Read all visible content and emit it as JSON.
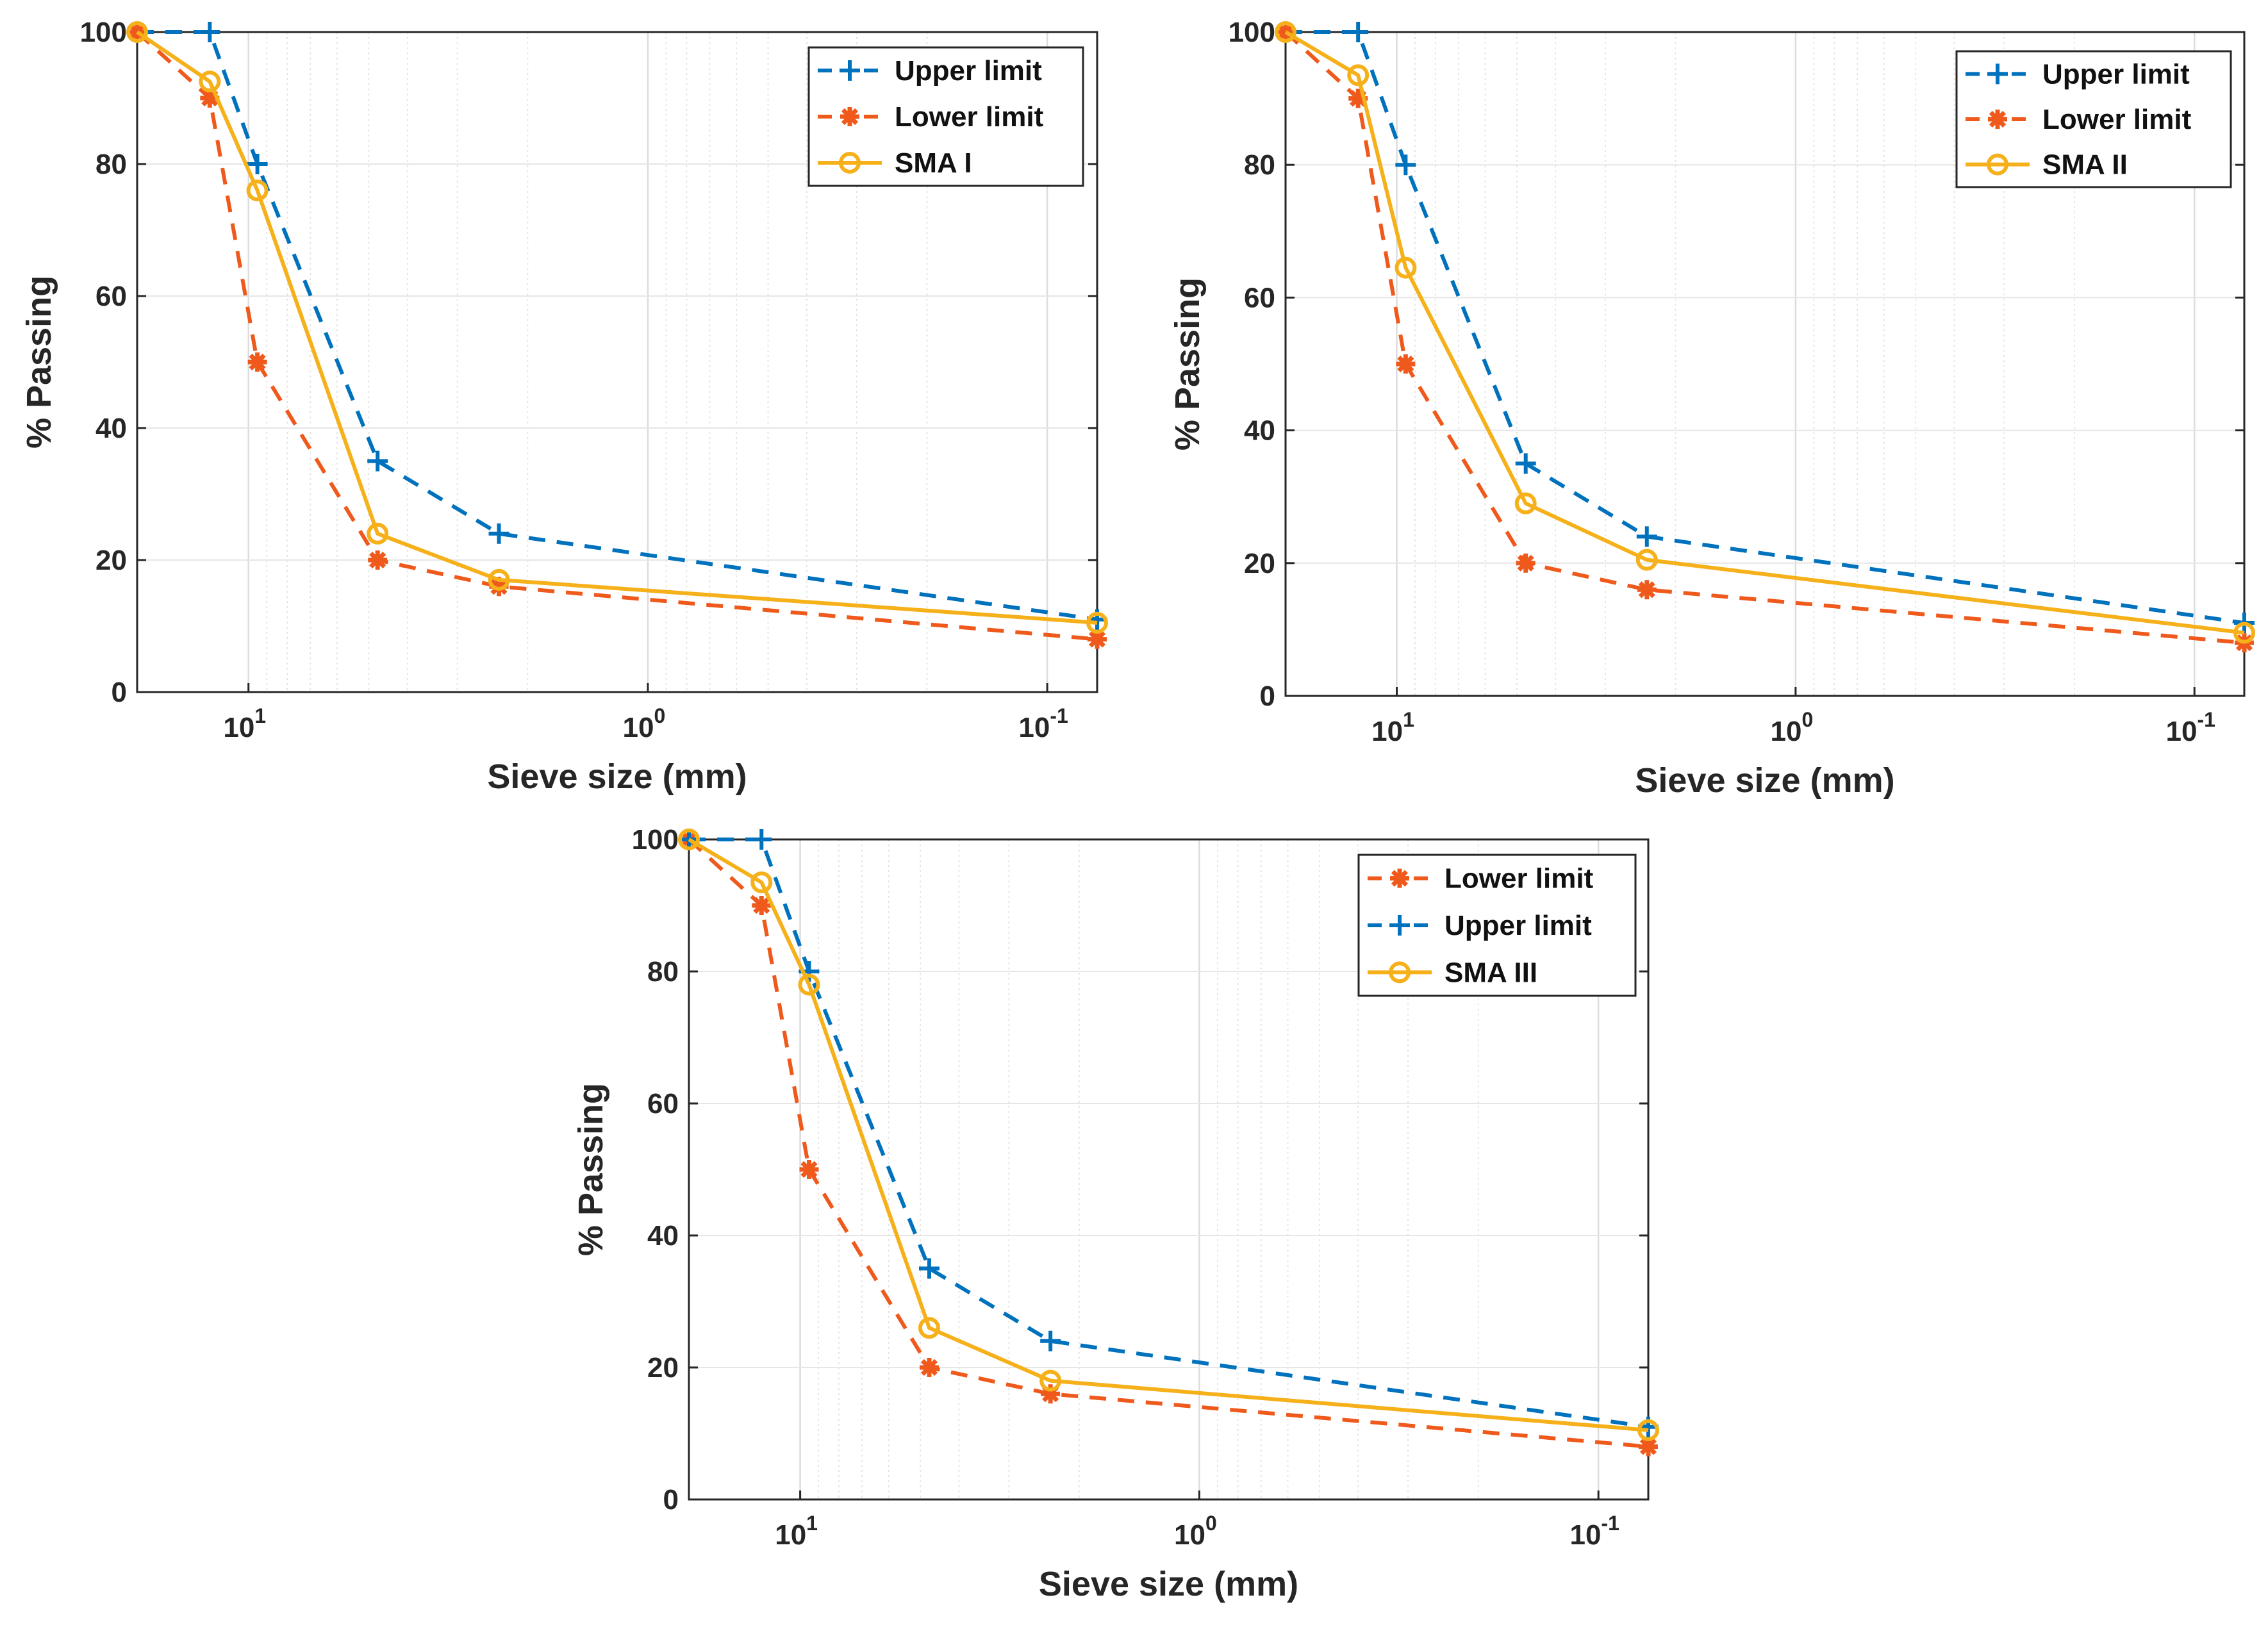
{
  "colors": {
    "upper": "#0072BD",
    "lower": "#EF5A1C",
    "sma": "#F5B01A",
    "axis": "#262626",
    "grid": "#E3E3E3"
  },
  "chart_data": [
    {
      "type": "line",
      "xscale": "log",
      "xdir": "reverse",
      "xlabel": "Sieve size (mm)",
      "ylabel": "% Passing",
      "xlim": [
        19,
        0.075
      ],
      "ylim": [
        0,
        100
      ],
      "yticks": [
        "0",
        "20",
        "40",
        "60",
        "80",
        "100"
      ],
      "xticks": [
        {
          "base": "10",
          "exp": "1"
        },
        {
          "base": "10",
          "exp": "0"
        },
        {
          "base": "10",
          "exp": "-1"
        }
      ],
      "legend_position": "top-right",
      "x": [
        19,
        12.5,
        9.5,
        4.75,
        2.36,
        0.075
      ],
      "series": [
        {
          "name": "Upper limit",
          "style": "upper",
          "values": [
            100,
            100,
            80,
            35,
            24,
            11
          ]
        },
        {
          "name": "Lower limit",
          "style": "lower",
          "values": [
            100,
            90,
            50,
            20,
            16,
            8
          ]
        },
        {
          "name": "SMA I",
          "style": "sma",
          "values": [
            100,
            92.5,
            76,
            24,
            17,
            10.5
          ]
        }
      ]
    },
    {
      "type": "line",
      "xscale": "log",
      "xdir": "reverse",
      "xlabel": "Sieve size (mm)",
      "ylabel": "% Passing",
      "xlim": [
        19,
        0.075
      ],
      "ylim": [
        0,
        100
      ],
      "yticks": [
        "0",
        "20",
        "40",
        "60",
        "80",
        "100"
      ],
      "xticks": [
        {
          "base": "10",
          "exp": "1"
        },
        {
          "base": "10",
          "exp": "0"
        },
        {
          "base": "10",
          "exp": "-1"
        }
      ],
      "legend_position": "top-right",
      "x": [
        19,
        12.5,
        9.5,
        4.75,
        2.36,
        0.075
      ],
      "series": [
        {
          "name": "Upper limit",
          "style": "upper",
          "values": [
            100,
            100,
            80,
            35,
            24,
            11
          ]
        },
        {
          "name": "Lower limit",
          "style": "lower",
          "values": [
            100,
            90,
            50,
            20,
            16,
            8
          ]
        },
        {
          "name": "SMA II",
          "style": "sma",
          "values": [
            100,
            93.5,
            64.5,
            29,
            20.5,
            9.5
          ]
        }
      ]
    },
    {
      "type": "line",
      "xscale": "log",
      "xdir": "reverse",
      "xlabel": "Sieve size (mm)",
      "ylabel": "% Passing",
      "xlim": [
        19,
        0.075
      ],
      "ylim": [
        0,
        100
      ],
      "yticks": [
        "0",
        "20",
        "40",
        "60",
        "80",
        "100"
      ],
      "xticks": [
        {
          "base": "10",
          "exp": "1"
        },
        {
          "base": "10",
          "exp": "0"
        },
        {
          "base": "10",
          "exp": "-1"
        }
      ],
      "legend_position": "top-right",
      "x": [
        19,
        12.5,
        9.5,
        4.75,
        2.36,
        0.075
      ],
      "series": [
        {
          "name": "Lower limit",
          "style": "lower",
          "values": [
            100,
            90,
            50,
            20,
            16,
            8
          ]
        },
        {
          "name": "Upper limit",
          "style": "upper",
          "values": [
            100,
            100,
            80,
            35,
            24,
            11
          ]
        },
        {
          "name": "SMA III",
          "style": "sma",
          "values": [
            100,
            93.5,
            78,
            26,
            18,
            10.5
          ]
        }
      ]
    }
  ]
}
